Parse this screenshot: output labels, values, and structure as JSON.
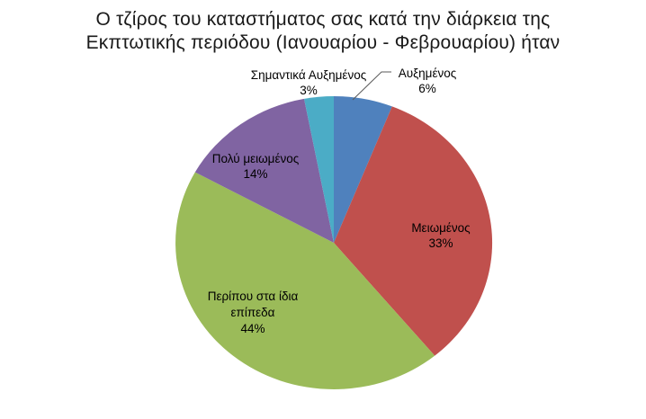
{
  "chart_data": {
    "type": "pie",
    "title": "Ο τζίρος του καταστήματος σας κατά την διάρκεια της Εκπτωτικής περιόδου (Ιανουαρίου - Φεβρουαρίου) ήταν",
    "direction": "clockwise",
    "start_angle_deg": 0,
    "legend": "none",
    "label_style": "category name + percentage, inside large slices, outside small slices",
    "slices": [
      {
        "label": "Αυξημένος",
        "value": 6,
        "pct_label": "6%",
        "color": "#4F81BD"
      },
      {
        "label": "Μειωμένος",
        "value": 33,
        "pct_label": "33%",
        "color": "#C0504D"
      },
      {
        "label": "Περίπου στα ίδια επίπεδα",
        "value": 44,
        "pct_label": "44%",
        "color": "#9BBB59"
      },
      {
        "label": "Πολύ μειωμένος",
        "value": 14,
        "pct_label": "14%",
        "color": "#8064A2"
      },
      {
        "label": "Σημαντικά Αυξημένος",
        "value": 3,
        "pct_label": "3%",
        "color": "#4BACC6"
      }
    ],
    "leader_line_color": "#595959"
  }
}
